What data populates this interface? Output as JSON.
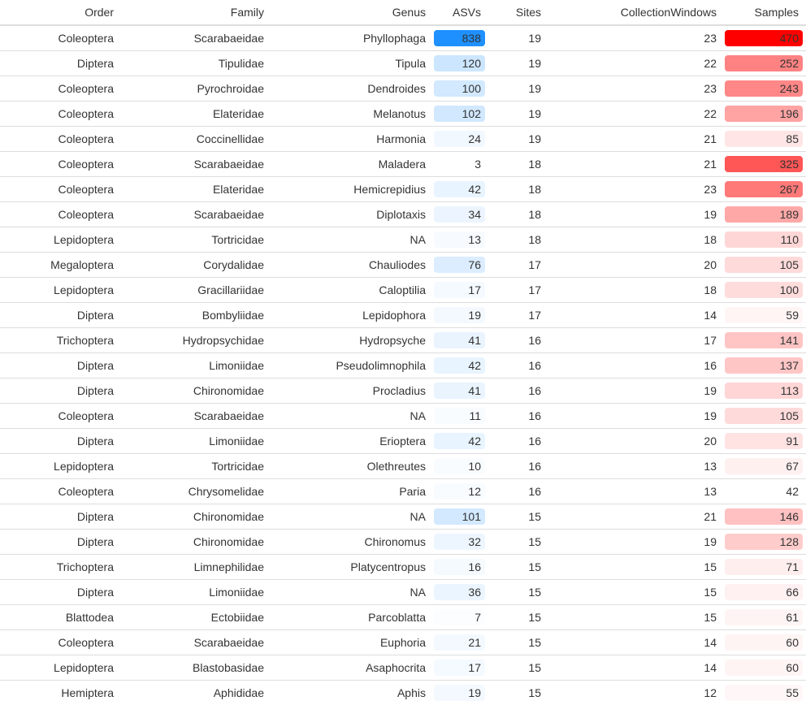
{
  "table": {
    "columns": [
      "Order",
      "Family",
      "Genus",
      "ASVs",
      "Sites",
      "CollectionWindows",
      "Samples"
    ],
    "rows": [
      [
        "Coleoptera",
        "Scarabaeidae",
        "Phyllophaga",
        "838",
        "19",
        "23",
        "470"
      ],
      [
        "Diptera",
        "Tipulidae",
        "Tipula",
        "120",
        "19",
        "22",
        "252"
      ],
      [
        "Coleoptera",
        "Pyrochroidae",
        "Dendroides",
        "100",
        "19",
        "23",
        "243"
      ],
      [
        "Coleoptera",
        "Elateridae",
        "Melanotus",
        "102",
        "19",
        "22",
        "196"
      ],
      [
        "Coleoptera",
        "Coccinellidae",
        "Harmonia",
        "24",
        "19",
        "21",
        "85"
      ],
      [
        "Coleoptera",
        "Scarabaeidae",
        "Maladera",
        "3",
        "18",
        "21",
        "325"
      ],
      [
        "Coleoptera",
        "Elateridae",
        "Hemicrepidius",
        "42",
        "18",
        "23",
        "267"
      ],
      [
        "Coleoptera",
        "Scarabaeidae",
        "Diplotaxis",
        "34",
        "18",
        "19",
        "189"
      ],
      [
        "Lepidoptera",
        "Tortricidae",
        "NA",
        "13",
        "18",
        "18",
        "110"
      ],
      [
        "Megaloptera",
        "Corydalidae",
        "Chauliodes",
        "76",
        "17",
        "20",
        "105"
      ],
      [
        "Lepidoptera",
        "Gracillariidae",
        "Caloptilia",
        "17",
        "17",
        "18",
        "100"
      ],
      [
        "Diptera",
        "Bombyliidae",
        "Lepidophora",
        "19",
        "17",
        "14",
        "59"
      ],
      [
        "Trichoptera",
        "Hydropsychidae",
        "Hydropsyche",
        "41",
        "16",
        "17",
        "141"
      ],
      [
        "Diptera",
        "Limoniidae",
        "Pseudolimnophila",
        "42",
        "16",
        "16",
        "137"
      ],
      [
        "Diptera",
        "Chironomidae",
        "Procladius",
        "41",
        "16",
        "19",
        "113"
      ],
      [
        "Coleoptera",
        "Scarabaeidae",
        "NA",
        "11",
        "16",
        "19",
        "105"
      ],
      [
        "Diptera",
        "Limoniidae",
        "Erioptera",
        "42",
        "16",
        "20",
        "91"
      ],
      [
        "Lepidoptera",
        "Tortricidae",
        "Olethreutes",
        "10",
        "16",
        "13",
        "67"
      ],
      [
        "Coleoptera",
        "Chrysomelidae",
        "Paria",
        "12",
        "16",
        "13",
        "42"
      ],
      [
        "Diptera",
        "Chironomidae",
        "NA",
        "101",
        "15",
        "21",
        "146"
      ],
      [
        "Diptera",
        "Chironomidae",
        "Chironomus",
        "32",
        "15",
        "19",
        "128"
      ],
      [
        "Trichoptera",
        "Limnephilidae",
        "Platycentropus",
        "16",
        "15",
        "15",
        "71"
      ],
      [
        "Diptera",
        "Limoniidae",
        "NA",
        "36",
        "15",
        "15",
        "66"
      ],
      [
        "Blattodea",
        "Ectobiidae",
        "Parcoblatta",
        "7",
        "15",
        "15",
        "61"
      ],
      [
        "Coleoptera",
        "Scarabaeidae",
        "Euphoria",
        "21",
        "15",
        "14",
        "60"
      ],
      [
        "Lepidoptera",
        "Blastobasidae",
        "Asaphocrita",
        "17",
        "15",
        "14",
        "60"
      ],
      [
        "Hemiptera",
        "Aphididae",
        "Aphis",
        "19",
        "15",
        "12",
        "55"
      ]
    ]
  },
  "colors": {
    "asvs_high": "#1e90ff",
    "samples_high": "#ff0000",
    "text": "#333333",
    "rule": "#dddddd"
  }
}
